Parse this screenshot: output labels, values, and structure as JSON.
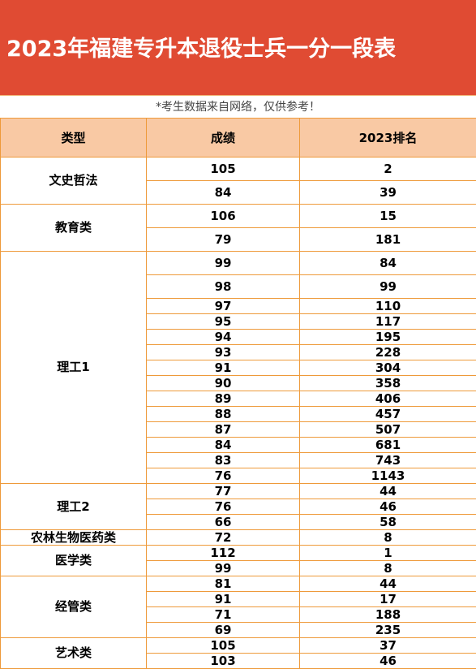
{
  "header": {
    "title": "2023年福建专升本退役士兵一分一段表"
  },
  "note": "*考生数据来自网络，仅供参考！",
  "table": {
    "columns": [
      "类型",
      "成绩",
      "2023排名"
    ],
    "groups": [
      {
        "type": "文史哲法",
        "rows": [
          {
            "score": "105",
            "rank": "2",
            "h": 29
          },
          {
            "score": "84",
            "rank": "39",
            "h": 29
          }
        ]
      },
      {
        "type": "教育类",
        "rows": [
          {
            "score": "106",
            "rank": "15",
            "h": 29
          },
          {
            "score": "79",
            "rank": "181",
            "h": 29
          }
        ]
      },
      {
        "type": "理工1",
        "rows": [
          {
            "score": "99",
            "rank": "84",
            "h": 29
          },
          {
            "score": "98",
            "rank": "99",
            "h": 29
          },
          {
            "score": "97",
            "rank": "110",
            "h": 19
          },
          {
            "score": "95",
            "rank": "117",
            "h": 19
          },
          {
            "score": "94",
            "rank": "195",
            "h": 19
          },
          {
            "score": "93",
            "rank": "228",
            "h": 19
          },
          {
            "score": "91",
            "rank": "304",
            "h": 19
          },
          {
            "score": "90",
            "rank": "358",
            "h": 19
          },
          {
            "score": "89",
            "rank": "406",
            "h": 19
          },
          {
            "score": "88",
            "rank": "457",
            "h": 19
          },
          {
            "score": "87",
            "rank": "507",
            "h": 19
          },
          {
            "score": "84",
            "rank": "681",
            "h": 19
          },
          {
            "score": "83",
            "rank": "743",
            "h": 19
          },
          {
            "score": "76",
            "rank": "1143",
            "h": 19
          }
        ]
      },
      {
        "type": "理工2",
        "rows": [
          {
            "score": "77",
            "rank": "44",
            "h": 19
          },
          {
            "score": "76",
            "rank": "46",
            "h": 19
          },
          {
            "score": "66",
            "rank": "58",
            "h": 19
          }
        ]
      },
      {
        "type": "农林生物医药类",
        "rows": [
          {
            "score": "72",
            "rank": "8",
            "h": 19
          }
        ]
      },
      {
        "type": "医学类",
        "rows": [
          {
            "score": "112",
            "rank": "1",
            "h": 19
          },
          {
            "score": "99",
            "rank": "8",
            "h": 19
          }
        ]
      },
      {
        "type": "经管类",
        "rows": [
          {
            "score": "81",
            "rank": "44",
            "h": 19
          },
          {
            "score": "91",
            "rank": "17",
            "h": 19
          },
          {
            "score": "71",
            "rank": "188",
            "h": 19
          },
          {
            "score": "69",
            "rank": "235",
            "h": 19
          }
        ]
      },
      {
        "type": "艺术类",
        "rows": [
          {
            "score": "105",
            "rank": "37",
            "h": 19
          },
          {
            "score": "103",
            "rank": "46",
            "h": 19
          }
        ]
      }
    ]
  }
}
